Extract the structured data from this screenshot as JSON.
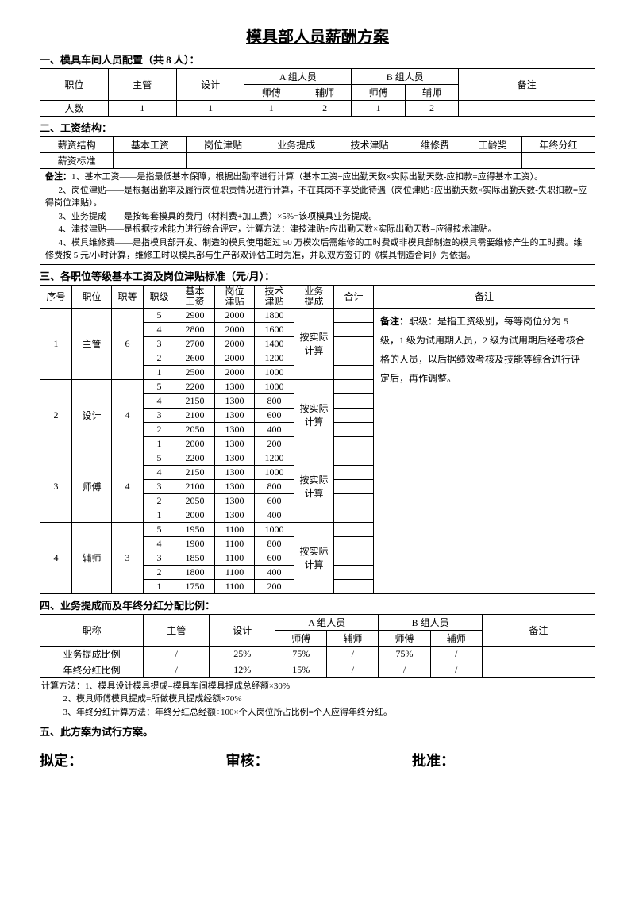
{
  "title": "模具部人员薪酬方案",
  "s1": {
    "heading": "一、模具车间人员配置（共 8 人）：",
    "h_pos": "职位",
    "h_mgr": "主管",
    "h_des": "设计",
    "h_a": "A 组人员",
    "h_b": "B 组人员",
    "h_rem": "备注",
    "h_master": "师傅",
    "h_asst": "辅师",
    "r_count": "人数",
    "v_mgr": "1",
    "v_des": "1",
    "v_am": "1",
    "v_aa": "2",
    "v_bm": "1",
    "v_ba": "2"
  },
  "s2": {
    "heading": "二、工资结构：",
    "h_struct": "薪资结构",
    "h_base": "基本工资",
    "h_post": "岗位津贴",
    "h_biz": "业务提成",
    "h_tech": "技术津贴",
    "h_maint": "维修费",
    "h_seniority": "工龄奖",
    "h_bonus": "年终分红",
    "r_std": "薪资标准",
    "note_label": "备注：",
    "note1": "1、基本工资——是指最低基本保障，根据出勤率进行计算（基本工资÷应出勤天数×实际出勤天数-应扣款=应得基本工资）。",
    "note2": "2、岗位津贴——是根据出勤率及履行岗位职责情况进行计算，不在其岗不享受此待遇（岗位津贴÷应出勤天数×实际出勤天数-失职扣款=应得岗位津贴）。",
    "note3": "3、业务提成——是按每套模具的费用（材料费+加工费）×5%=该项模具业务提成。",
    "note4": "4、津技津贴——是根据技术能力进行综合评定，计算方法：津技津贴÷应出勤天数×实际出勤天数=应得技术津贴。",
    "note5": "4、模具维修费——是指模具部开发、制造的模具使用超过 50 万模次后需维修的工时费或非模具部制造的模具需要维修产生的工时费。维修费按 5 元/小时计算，维修工时以模具部与生产部双评估工时为准，并以双方签订的《模具制造合同》为依据。"
  },
  "s3": {
    "heading": "三、各职位等级基本工资及岗位津贴标准（元/月）：",
    "h_no": "序号",
    "h_pos": "职位",
    "h_grade": "职等",
    "h_rank": "职级",
    "h_base": "基本\n工资",
    "h_post": "岗位\n津贴",
    "h_tech": "技术\n津贴",
    "h_biz": "业务\n提成",
    "h_sum": "合计",
    "h_rem": "备注",
    "biz_txt": "按实际\n计算",
    "remark": "备注：职级：是指工资级别，每等岗位分为 5 级，1 级为试用期人员，2 级为试用期后经考核合格的人员，以后据绩效考核及技能等综合进行评定后，再作调整。",
    "g1": {
      "no": "1",
      "pos": "主管",
      "grade": "6",
      "r": [
        [
          "5",
          "2900",
          "2000",
          "1800"
        ],
        [
          "4",
          "2800",
          "2000",
          "1600"
        ],
        [
          "3",
          "2700",
          "2000",
          "1400"
        ],
        [
          "2",
          "2600",
          "2000",
          "1200"
        ],
        [
          "1",
          "2500",
          "2000",
          "1000"
        ]
      ]
    },
    "g2": {
      "no": "2",
      "pos": "设计",
      "grade": "4",
      "r": [
        [
          "5",
          "2200",
          "1300",
          "1000"
        ],
        [
          "4",
          "2150",
          "1300",
          "800"
        ],
        [
          "3",
          "2100",
          "1300",
          "600"
        ],
        [
          "2",
          "2050",
          "1300",
          "400"
        ],
        [
          "1",
          "2000",
          "1300",
          "200"
        ]
      ]
    },
    "g3": {
      "no": "3",
      "pos": "师傅",
      "grade": "4",
      "r": [
        [
          "5",
          "2200",
          "1300",
          "1200"
        ],
        [
          "4",
          "2150",
          "1300",
          "1000"
        ],
        [
          "3",
          "2100",
          "1300",
          "800"
        ],
        [
          "2",
          "2050",
          "1300",
          "600"
        ],
        [
          "1",
          "2000",
          "1300",
          "400"
        ]
      ]
    },
    "g4": {
      "no": "4",
      "pos": "辅师",
      "grade": "3",
      "r": [
        [
          "5",
          "1950",
          "1100",
          "1000"
        ],
        [
          "4",
          "1900",
          "1100",
          "800"
        ],
        [
          "3",
          "1850",
          "1100",
          "600"
        ],
        [
          "2",
          "1800",
          "1100",
          "400"
        ],
        [
          "1",
          "1750",
          "1100",
          "200"
        ]
      ]
    }
  },
  "s4": {
    "heading": "四、业务提成而及年终分红分配比例：",
    "h_title": "职称",
    "h_mgr": "主管",
    "h_des": "设计",
    "h_a": "A 组人员",
    "h_b": "B 组人员",
    "h_rem": "备注",
    "h_master": "师傅",
    "h_asst": "辅师",
    "r_biz": "业务提成比例",
    "r_bonus": "年终分红比例",
    "biz_mgr": "/",
    "biz_des": "25%",
    "biz_am": "75%",
    "biz_aa": "/",
    "biz_bm": "75%",
    "biz_ba": "/",
    "bon_mgr": "/",
    "bon_des": "12%",
    "bon_am": "15%",
    "bon_aa": "/",
    "bon_bm": "/",
    "bon_ba": "/",
    "calc1": "计算方法：1、模具设计模具提成=模具车间模具提成总经额×30%",
    "calc2": "2、模具师傅模具提成=所做模具提成经额×70%",
    "calc3": "3、年终分红计算方法：年终分红总经额÷100×个人岗位所占比例=个人应得年终分红。"
  },
  "s5": {
    "heading": "五、此方案为试行方案。"
  },
  "sig": {
    "draft": "拟定：",
    "review": "审核：",
    "approve": "批准："
  }
}
